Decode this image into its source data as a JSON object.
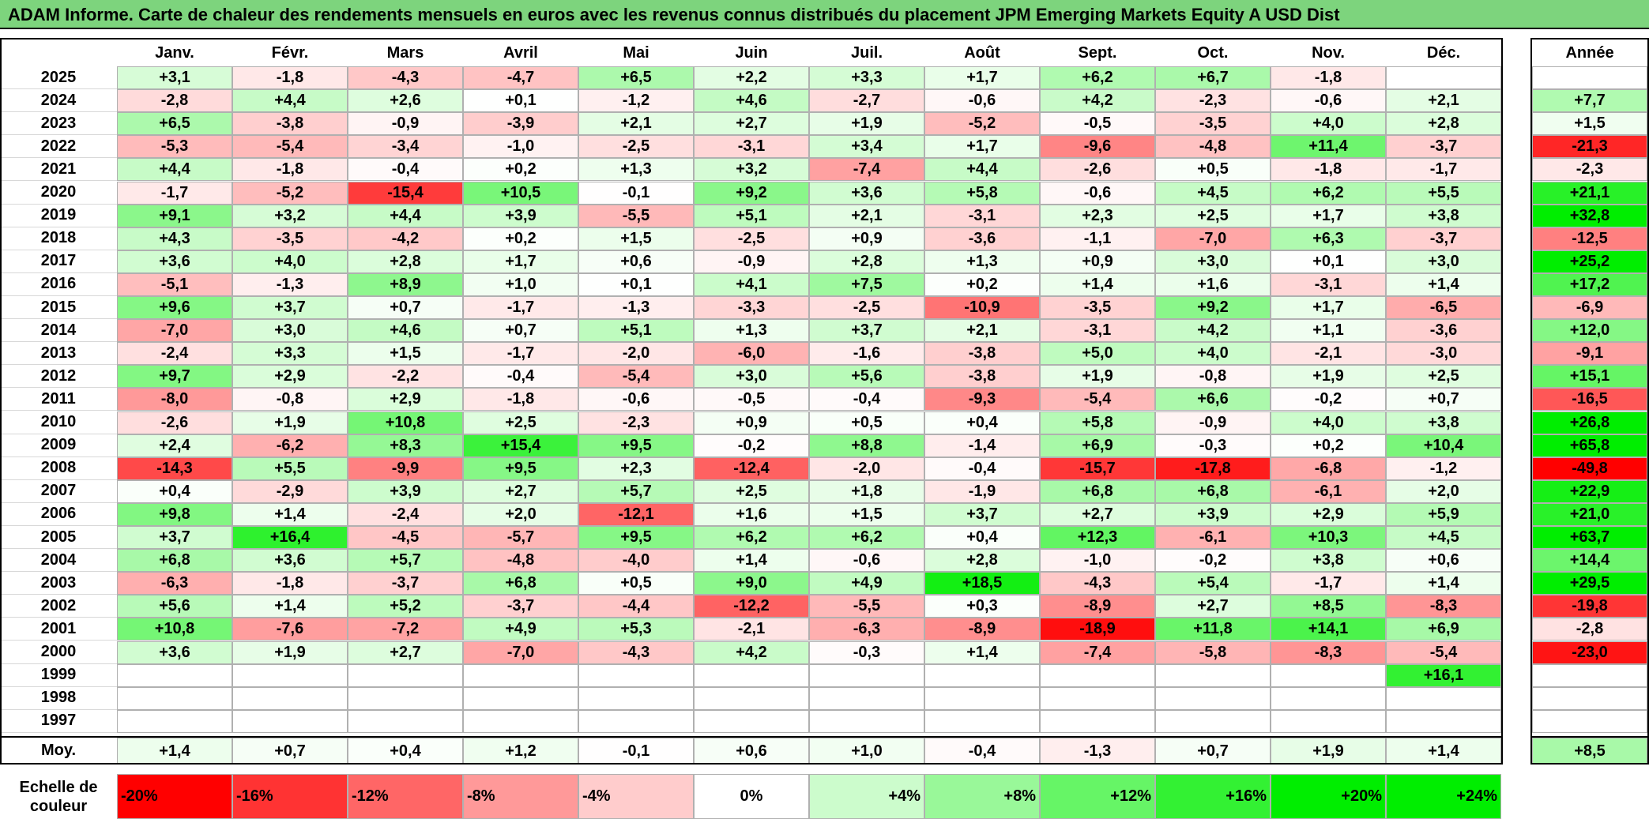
{
  "title": "ADAM Informe. Carte de chaleur des rendements mensuels en euros avec les revenus connus distribués du placement JPM Emerging Markets Equity A USD Dist",
  "chart_data": {
    "type": "heatmap",
    "title": "ADAM Informe. Carte de chaleur des rendements mensuels en euros avec les revenus connus distribués du placement JPM Emerging Markets Equity A USD Dist",
    "columns": [
      "Janv.",
      "Févr.",
      "Mars",
      "Avril",
      "Mai",
      "Juin",
      "Juil.",
      "Août",
      "Sept.",
      "Oct.",
      "Nov.",
      "Déc."
    ],
    "year_column_label": "Année",
    "rows": [
      {
        "year": "2025",
        "values": [
          "+3,1",
          "-1,8",
          "-4,3",
          "-4,7",
          "+6,5",
          "+2,2",
          "+3,3",
          "+1,7",
          "+6,2",
          "+6,7",
          "-1,8",
          ""
        ],
        "annual": ""
      },
      {
        "year": "2024",
        "values": [
          "-2,8",
          "+4,4",
          "+2,6",
          "+0,1",
          "-1,2",
          "+4,6",
          "-2,7",
          "-0,6",
          "+4,2",
          "-2,3",
          "-0,6",
          "+2,1"
        ],
        "annual": "+7,7"
      },
      {
        "year": "2023",
        "values": [
          "+6,5",
          "-3,8",
          "-0,9",
          "-3,9",
          "+2,1",
          "+2,7",
          "+1,9",
          "-5,2",
          "-0,5",
          "-3,5",
          "+4,0",
          "+2,8"
        ],
        "annual": "+1,5"
      },
      {
        "year": "2022",
        "values": [
          "-5,3",
          "-5,4",
          "-3,4",
          "-1,0",
          "-2,5",
          "-3,1",
          "+3,4",
          "+1,7",
          "-9,6",
          "-4,8",
          "+11,4",
          "-3,7"
        ],
        "annual": "-21,3"
      },
      {
        "year": "2021",
        "values": [
          "+4,4",
          "-1,8",
          "-0,4",
          "+0,2",
          "+1,3",
          "+3,2",
          "-7,4",
          "+4,4",
          "-2,6",
          "+0,5",
          "-1,8",
          "-1,7"
        ],
        "annual": "-2,3"
      },
      {
        "year": "2020",
        "values": [
          "-1,7",
          "-5,2",
          "-15,4",
          "+10,5",
          "-0,1",
          "+9,2",
          "+3,6",
          "+5,8",
          "-0,6",
          "+4,5",
          "+6,2",
          "+5,5"
        ],
        "annual": "+21,1"
      },
      {
        "year": "2019",
        "values": [
          "+9,1",
          "+3,2",
          "+4,4",
          "+3,9",
          "-5,5",
          "+5,1",
          "+2,1",
          "-3,1",
          "+2,3",
          "+2,5",
          "+1,7",
          "+3,8"
        ],
        "annual": "+32,8"
      },
      {
        "year": "2018",
        "values": [
          "+4,3",
          "-3,5",
          "-4,2",
          "+0,2",
          "+1,5",
          "-2,5",
          "+0,9",
          "-3,6",
          "-1,1",
          "-7,0",
          "+6,3",
          "-3,7"
        ],
        "annual": "-12,5"
      },
      {
        "year": "2017",
        "values": [
          "+3,6",
          "+4,0",
          "+2,8",
          "+1,7",
          "+0,6",
          "-0,9",
          "+2,8",
          "+1,3",
          "+0,9",
          "+3,0",
          "+0,1",
          "+3,0"
        ],
        "annual": "+25,2"
      },
      {
        "year": "2016",
        "values": [
          "-5,1",
          "-1,3",
          "+8,9",
          "+1,0",
          "+0,1",
          "+4,1",
          "+7,5",
          "+0,2",
          "+1,4",
          "+1,6",
          "-3,1",
          "+1,4"
        ],
        "annual": "+17,2"
      },
      {
        "year": "2015",
        "values": [
          "+9,6",
          "+3,7",
          "+0,7",
          "-1,7",
          "-1,3",
          "-3,3",
          "-2,5",
          "-10,9",
          "-3,5",
          "+9,2",
          "+1,7",
          "-6,5"
        ],
        "annual": "-6,9"
      },
      {
        "year": "2014",
        "values": [
          "-7,0",
          "+3,0",
          "+4,6",
          "+0,7",
          "+5,1",
          "+1,3",
          "+3,7",
          "+2,1",
          "-3,1",
          "+4,2",
          "+1,1",
          "-3,6"
        ],
        "annual": "+12,0"
      },
      {
        "year": "2013",
        "values": [
          "-2,4",
          "+3,3",
          "+1,5",
          "-1,7",
          "-2,0",
          "-6,0",
          "-1,6",
          "-3,8",
          "+5,0",
          "+4,0",
          "-2,1",
          "-3,0"
        ],
        "annual": "-9,1"
      },
      {
        "year": "2012",
        "values": [
          "+9,7",
          "+2,9",
          "-2,2",
          "-0,4",
          "-5,4",
          "+3,0",
          "+5,6",
          "-3,8",
          "+1,9",
          "-0,8",
          "+1,9",
          "+2,5"
        ],
        "annual": "+15,1"
      },
      {
        "year": "2011",
        "values": [
          "-8,0",
          "-0,8",
          "+2,9",
          "-1,8",
          "-0,6",
          "-0,5",
          "-0,4",
          "-9,3",
          "-5,4",
          "+6,6",
          "-0,2",
          "+0,7"
        ],
        "annual": "-16,5"
      },
      {
        "year": "2010",
        "values": [
          "-2,6",
          "+1,9",
          "+10,8",
          "+2,5",
          "-2,3",
          "+0,9",
          "+0,5",
          "+0,4",
          "+5,8",
          "-0,9",
          "+4,0",
          "+3,8"
        ],
        "annual": "+26,8"
      },
      {
        "year": "2009",
        "values": [
          "+2,4",
          "-6,2",
          "+8,3",
          "+15,4",
          "+9,5",
          "-0,2",
          "+8,8",
          "-1,4",
          "+6,9",
          "-0,3",
          "+0,2",
          "+10,4"
        ],
        "annual": "+65,8"
      },
      {
        "year": "2008",
        "values": [
          "-14,3",
          "+5,5",
          "-9,9",
          "+9,5",
          "+2,3",
          "-12,4",
          "-2,0",
          "-0,4",
          "-15,7",
          "-17,8",
          "-6,8",
          "-1,2"
        ],
        "annual": "-49,8"
      },
      {
        "year": "2007",
        "values": [
          "+0,4",
          "-2,9",
          "+3,9",
          "+2,7",
          "+5,7",
          "+2,5",
          "+1,8",
          "-1,9",
          "+6,8",
          "+6,8",
          "-6,1",
          "+2,0"
        ],
        "annual": "+22,9"
      },
      {
        "year": "2006",
        "values": [
          "+9,8",
          "+1,4",
          "-2,4",
          "+2,0",
          "-12,1",
          "+1,6",
          "+1,5",
          "+3,7",
          "+2,7",
          "+3,9",
          "+2,9",
          "+5,9"
        ],
        "annual": "+21,0"
      },
      {
        "year": "2005",
        "values": [
          "+3,7",
          "+16,4",
          "-4,5",
          "-5,7",
          "+9,5",
          "+6,2",
          "+6,2",
          "+0,4",
          "+12,3",
          "-6,1",
          "+10,3",
          "+4,5"
        ],
        "annual": "+63,7"
      },
      {
        "year": "2004",
        "values": [
          "+6,8",
          "+3,6",
          "+5,7",
          "-4,8",
          "-4,0",
          "+1,4",
          "-0,6",
          "+2,8",
          "-1,0",
          "-0,2",
          "+3,8",
          "+0,6"
        ],
        "annual": "+14,4"
      },
      {
        "year": "2003",
        "values": [
          "-6,3",
          "-1,8",
          "-3,7",
          "+6,8",
          "+0,5",
          "+9,0",
          "+4,9",
          "+18,5",
          "-4,3",
          "+5,4",
          "-1,7",
          "+1,4"
        ],
        "annual": "+29,5"
      },
      {
        "year": "2002",
        "values": [
          "+5,6",
          "+1,4",
          "+5,2",
          "-3,7",
          "-4,4",
          "-12,2",
          "-5,5",
          "+0,3",
          "-8,9",
          "+2,7",
          "+8,5",
          "-8,3"
        ],
        "annual": "-19,8"
      },
      {
        "year": "2001",
        "values": [
          "+10,8",
          "-7,6",
          "-7,2",
          "+4,9",
          "+5,3",
          "-2,1",
          "-6,3",
          "-8,9",
          "-18,9",
          "+11,8",
          "+14,1",
          "+6,9"
        ],
        "annual": "-2,8"
      },
      {
        "year": "2000",
        "values": [
          "+3,6",
          "+1,9",
          "+2,7",
          "-7,0",
          "-4,3",
          "+4,2",
          "-0,3",
          "+1,4",
          "-7,4",
          "-5,8",
          "-8,3",
          "-5,4"
        ],
        "annual": "-23,0"
      },
      {
        "year": "1999",
        "values": [
          "",
          "",
          "",
          "",
          "",
          "",
          "",
          "",
          "",
          "",
          "",
          "+16,1"
        ],
        "annual": ""
      },
      {
        "year": "1998",
        "values": [
          "",
          "",
          "",
          "",
          "",
          "",
          "",
          "",
          "",
          "",
          "",
          ""
        ],
        "annual": ""
      },
      {
        "year": "1997",
        "values": [
          "",
          "",
          "",
          "",
          "",
          "",
          "",
          "",
          "",
          "",
          "",
          ""
        ],
        "annual": ""
      }
    ],
    "average": {
      "label": "Moy.",
      "values": [
        "+1,4",
        "+0,7",
        "+0,4",
        "+1,2",
        "-0,1",
        "+0,6",
        "+1,0",
        "-0,4",
        "-1,3",
        "+0,7",
        "+1,9",
        "+1,4"
      ],
      "annual": "+8,5"
    },
    "scale": {
      "label": "Echelle de couleur",
      "steps": [
        "-20%",
        "-16%",
        "-12%",
        "-8%",
        "-4%",
        "0%",
        "+4%",
        "+8%",
        "+12%",
        "+16%",
        "+20%",
        "+24%"
      ],
      "step_values": [
        -20,
        -16,
        -12,
        -8,
        -4,
        0,
        4,
        8,
        12,
        16,
        20,
        24
      ]
    },
    "colors": {
      "negative_max": "#ff0000",
      "neutral": "#ffffff",
      "positive_max": "#00ee00",
      "title_bg": "#7dd47d"
    }
  }
}
